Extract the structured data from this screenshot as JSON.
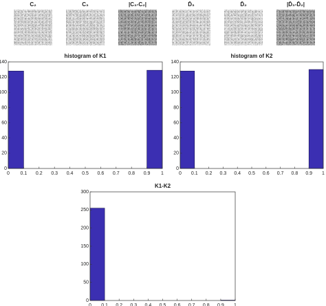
{
  "images": [
    {
      "label": "C₂",
      "tone": "light"
    },
    {
      "label": "C₃",
      "tone": "light"
    },
    {
      "label": "|C₃-C₂|",
      "tone": "dark"
    },
    {
      "label": "D̄₃",
      "tone": "light"
    },
    {
      "label": "D̄₂",
      "tone": "light"
    },
    {
      "label": "|D̄₃-D̄₂|",
      "tone": "dark"
    }
  ],
  "chart_data": [
    {
      "type": "histogram",
      "title": "histogram of K1",
      "color": "#3b2fb2",
      "bins": [
        0,
        0.1,
        0.2,
        0.3,
        0.4,
        0.5,
        0.6,
        0.7,
        0.8,
        0.9,
        1
      ],
      "values": [
        128,
        0,
        0,
        0,
        0,
        0,
        0,
        0,
        0,
        129
      ],
      "xlim": [
        0,
        1
      ],
      "xticks": [
        0,
        0.1,
        0.2,
        0.3,
        0.4,
        0.5,
        0.6,
        0.7,
        0.8,
        0.9,
        1
      ],
      "ylim": [
        0,
        140
      ],
      "yticks": [
        0,
        20,
        40,
        60,
        80,
        100,
        120,
        140
      ]
    },
    {
      "type": "histogram",
      "title": "histogram of K2",
      "color": "#3b2fb2",
      "bins": [
        0,
        0.1,
        0.2,
        0.3,
        0.4,
        0.5,
        0.6,
        0.7,
        0.8,
        0.9,
        1
      ],
      "values": [
        128,
        0,
        0,
        0,
        0,
        0,
        0,
        0,
        0,
        130
      ],
      "xlim": [
        0,
        1
      ],
      "xticks": [
        0,
        0.1,
        0.2,
        0.3,
        0.4,
        0.5,
        0.6,
        0.7,
        0.8,
        0.9,
        1
      ],
      "ylim": [
        0,
        140
      ],
      "yticks": [
        0,
        20,
        40,
        60,
        80,
        100,
        120,
        140
      ]
    },
    {
      "type": "histogram",
      "title": "K1-K2",
      "color": "#3b2fb2",
      "bins": [
        0,
        0.1,
        0.2,
        0.3,
        0.4,
        0.5,
        0.6,
        0.7,
        0.8,
        0.9,
        1
      ],
      "values": [
        255,
        0,
        0,
        0,
        0,
        0,
        0,
        0,
        0,
        1
      ],
      "xlim": [
        0,
        1
      ],
      "xticks": [
        0,
        0.1,
        0.2,
        0.3,
        0.4,
        0.5,
        0.6,
        0.7,
        0.8,
        0.9,
        1
      ],
      "ylim": [
        0,
        300
      ],
      "yticks": [
        0,
        50,
        100,
        150,
        200,
        250,
        300
      ]
    }
  ]
}
